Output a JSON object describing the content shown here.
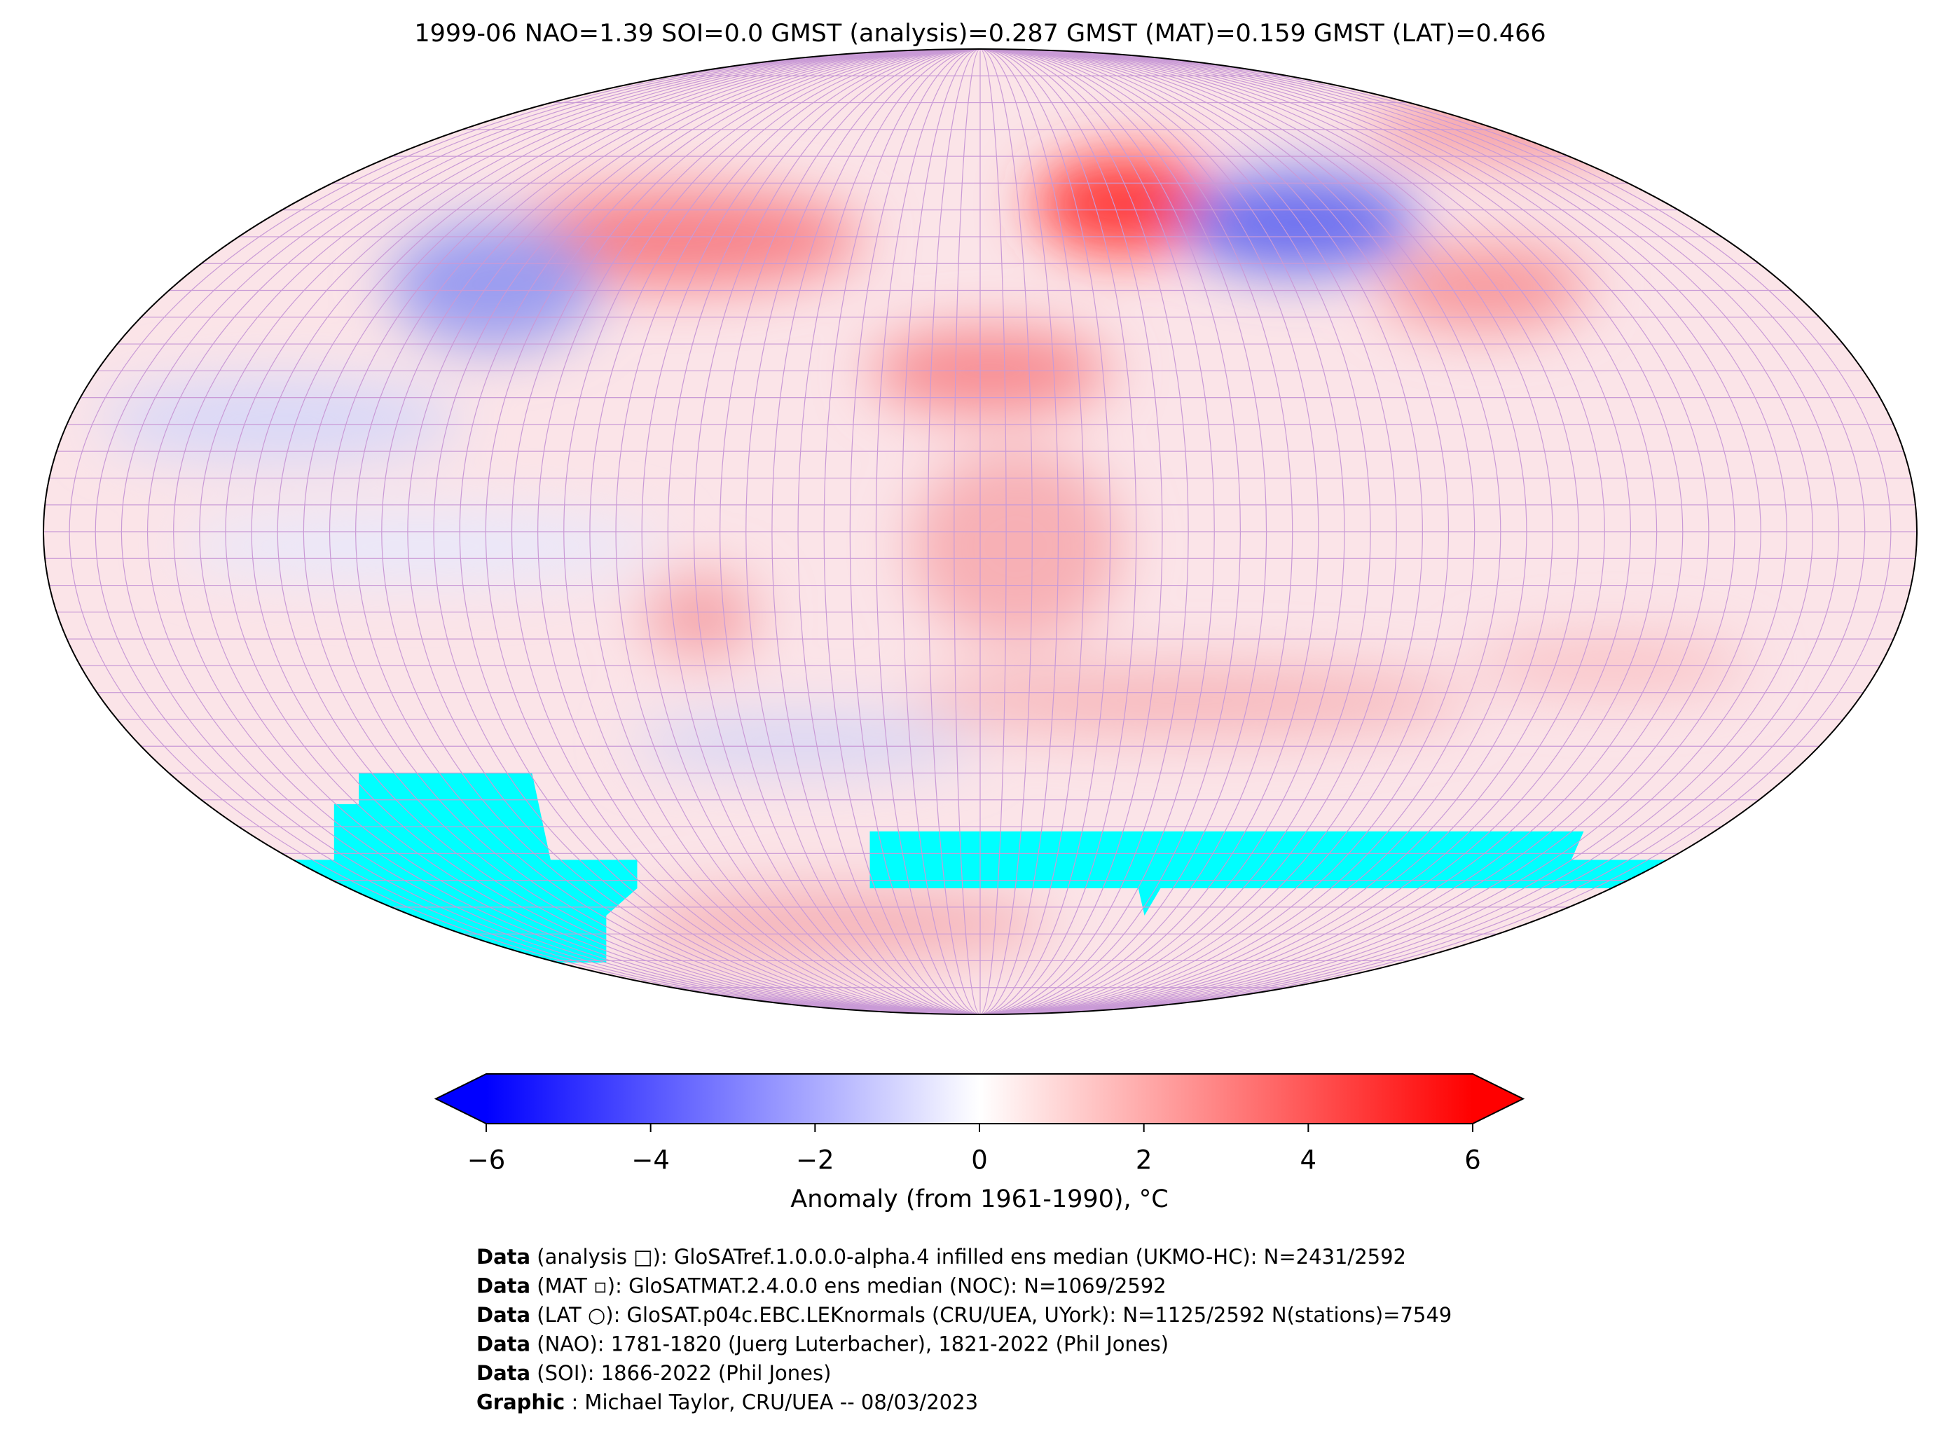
{
  "chart_data": {
    "type": "map",
    "title": "1999-06 NAO=1.39 SOI=0.0 GMST (analysis)=0.287 GMST (MAT)=0.159 GMST (LAT)=0.466",
    "colorbar": {
      "label": "Anomaly (from 1961-1990), °C",
      "lim": [
        -6,
        6
      ],
      "extend": "both",
      "colors": [
        "#0000ff",
        "#ffffff",
        "#ff0000"
      ],
      "ticks": [
        {
          "value": -6,
          "label": "−6"
        },
        {
          "value": -4,
          "label": "−4"
        },
        {
          "value": -2,
          "label": "−2"
        },
        0,
        2,
        4,
        6
      ]
    },
    "credits": [
      {
        "label": "Data",
        "text": "(analysis □): GloSATref.1.0.0.0-alpha.4 infilled ens median (UKMO-HC): N=2431/2592"
      },
      {
        "label": "Data",
        "text": "(MAT ▫): GloSATMAT.2.4.0.0 ens median (NOC): N=1069/2592"
      },
      {
        "label": "Data",
        "text": "(LAT ○): GloSAT.p04c.EBC.LEKnormals (CRU/UEA, UYork): N=1125/2592 N(stations)=7549"
      },
      {
        "label": "Data",
        "text": "(NAO): 1781-1820 (Juerg Luterbacher), 1821-2022 (Phil Jones)"
      },
      {
        "label": "Data",
        "text": "(SOI): 1866-2022 (Phil Jones)"
      },
      {
        "label": "Graphic",
        "text": ": Michael Taylor, CRU/UEA -- 08/03/2023"
      }
    ]
  }
}
